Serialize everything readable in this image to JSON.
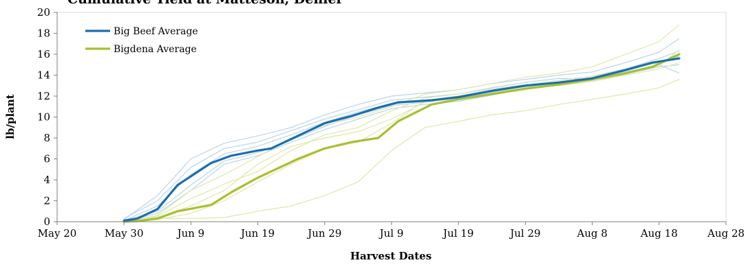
{
  "chart_data": {
    "type": "line",
    "title": "Cumulative Yield at Matteson, Denier",
    "xlabel": "Harvest Dates",
    "ylabel": "lb/plant",
    "xlim": [
      "2013-05-20",
      "2013-08-28"
    ],
    "ylim": [
      0,
      20
    ],
    "x_ticks": [
      "May 20",
      "May 30",
      "Jun 9",
      "Jun 19",
      "Jun 29",
      "Jul 9",
      "Jul 19",
      "Jul 29",
      "Aug 8",
      "Aug 18",
      "Aug 28"
    ],
    "y_ticks": [
      0,
      2,
      4,
      6,
      8,
      10,
      12,
      14,
      16,
      18,
      20
    ],
    "legend_position": "top-left",
    "grid": false,
    "colors": {
      "big_beef": "#1a6eb0",
      "bigdena": "#a5c12e",
      "big_beef_light": "#b8d4ea",
      "bigdena_light": "#dde8a8",
      "axis": "#7f7f7f"
    },
    "series": [
      {
        "name": "Big Beef Average",
        "x": [
          "2013-05-30",
          "2013-06-01",
          "2013-06-04",
          "2013-06-07",
          "2013-06-12",
          "2013-06-15",
          "2013-06-19",
          "2013-06-21",
          "2013-06-25",
          "2013-06-29",
          "2013-07-03",
          "2013-07-07",
          "2013-07-10",
          "2013-07-15",
          "2013-07-19",
          "2013-07-24",
          "2013-07-29",
          "2013-08-03",
          "2013-08-08",
          "2013-08-13",
          "2013-08-17",
          "2013-08-21"
        ],
        "values": [
          0.1,
          0.3,
          1.2,
          3.5,
          5.6,
          6.3,
          6.8,
          7.0,
          8.2,
          9.4,
          10.1,
          10.9,
          11.4,
          11.6,
          11.9,
          12.5,
          13.0,
          13.3,
          13.7,
          14.5,
          15.2,
          15.6
        ]
      },
      {
        "name": "Bigdena Average",
        "x": [
          "2013-05-30",
          "2013-06-01",
          "2013-06-04",
          "2013-06-07",
          "2013-06-12",
          "2013-06-15",
          "2013-06-19",
          "2013-06-21",
          "2013-06-25",
          "2013-06-29",
          "2013-07-03",
          "2013-07-07",
          "2013-07-10",
          "2013-07-15",
          "2013-07-19",
          "2013-07-24",
          "2013-07-29",
          "2013-08-03",
          "2013-08-08",
          "2013-08-13",
          "2013-08-17",
          "2013-08-21"
        ],
        "values": [
          0.0,
          0.05,
          0.3,
          1.0,
          1.6,
          2.8,
          4.2,
          4.8,
          6.0,
          7.0,
          7.6,
          8.0,
          9.6,
          11.2,
          11.7,
          12.2,
          12.7,
          13.1,
          13.6,
          14.2,
          14.8,
          16.0
        ]
      }
    ],
    "individual_series": [
      {
        "group": "Big Beef",
        "x": [
          "2013-05-30",
          "2013-06-04",
          "2013-06-09",
          "2013-06-14",
          "2013-06-19",
          "2013-06-24",
          "2013-06-29",
          "2013-07-04",
          "2013-07-09",
          "2013-07-14",
          "2013-07-19",
          "2013-07-24",
          "2013-07-29",
          "2013-08-03",
          "2013-08-08",
          "2013-08-13",
          "2013-08-18",
          "2013-08-21"
        ],
        "values": [
          0.2,
          2.5,
          6.0,
          7.5,
          8.2,
          9.0,
          10.2,
          11.2,
          12.0,
          12.3,
          12.6,
          13.2,
          13.6,
          14.0,
          14.3,
          15.2,
          16.2,
          17.5
        ]
      },
      {
        "group": "Big Beef",
        "x": [
          "2013-05-30",
          "2013-06-04",
          "2013-06-09",
          "2013-06-14",
          "2013-06-19",
          "2013-06-24",
          "2013-06-29",
          "2013-07-04",
          "2013-07-09",
          "2013-07-14",
          "2013-07-19",
          "2013-07-24",
          "2013-07-29",
          "2013-08-03",
          "2013-08-08",
          "2013-08-13",
          "2013-08-18",
          "2013-08-21"
        ],
        "values": [
          0.1,
          1.5,
          4.5,
          6.5,
          7.2,
          8.3,
          9.5,
          10.5,
          11.3,
          11.6,
          12.0,
          12.6,
          13.1,
          13.5,
          13.9,
          14.6,
          15.6,
          16.3
        ]
      },
      {
        "group": "Big Beef",
        "x": [
          "2013-05-30",
          "2013-06-04",
          "2013-06-09",
          "2013-06-14",
          "2013-06-19",
          "2013-06-24",
          "2013-06-29",
          "2013-07-04",
          "2013-07-09",
          "2013-07-14",
          "2013-07-19",
          "2013-07-24",
          "2013-07-29",
          "2013-08-03",
          "2013-08-08",
          "2013-08-13",
          "2013-08-18",
          "2013-08-21"
        ],
        "values": [
          0.0,
          0.8,
          3.0,
          5.5,
          6.3,
          7.6,
          8.8,
          9.8,
          10.8,
          11.2,
          11.5,
          12.1,
          12.7,
          13.1,
          13.4,
          14.1,
          14.8,
          15.0
        ]
      },
      {
        "group": "Big Beef",
        "x": [
          "2013-05-30",
          "2013-06-04",
          "2013-06-09",
          "2013-06-14",
          "2013-06-19",
          "2013-06-24",
          "2013-06-29",
          "2013-07-04",
          "2013-07-09",
          "2013-07-14",
          "2013-07-19",
          "2013-07-24",
          "2013-07-29",
          "2013-08-03",
          "2013-08-08",
          "2013-08-13",
          "2013-08-18",
          "2013-08-21"
        ],
        "values": [
          0.1,
          1.0,
          3.5,
          5.8,
          6.6,
          7.8,
          9.1,
          10.2,
          11.1,
          11.4,
          11.8,
          12.3,
          12.8,
          13.2,
          13.5,
          14.3,
          15.0,
          14.2
        ]
      },
      {
        "group": "Big Beef",
        "x": [
          "2013-05-30",
          "2013-06-04",
          "2013-06-09",
          "2013-06-14",
          "2013-06-19",
          "2013-06-24",
          "2013-06-29",
          "2013-07-04",
          "2013-07-09",
          "2013-07-14",
          "2013-07-19",
          "2013-07-24",
          "2013-07-29",
          "2013-08-03",
          "2013-08-08",
          "2013-08-13",
          "2013-08-18",
          "2013-08-21"
        ],
        "values": [
          0.3,
          2.0,
          5.2,
          7.0,
          7.6,
          8.7,
          9.8,
          10.7,
          11.6,
          11.9,
          12.2,
          12.8,
          13.3,
          13.7,
          13.6,
          14.4,
          15.3,
          15.8
        ]
      },
      {
        "group": "Bigdena",
        "x": [
          "2013-05-30",
          "2013-06-04",
          "2013-06-09",
          "2013-06-14",
          "2013-06-19",
          "2013-06-24",
          "2013-06-29",
          "2013-07-04",
          "2013-07-09",
          "2013-07-14",
          "2013-07-19",
          "2013-07-24",
          "2013-07-29",
          "2013-08-03",
          "2013-08-08",
          "2013-08-13",
          "2013-08-18",
          "2013-08-21"
        ],
        "values": [
          0.0,
          0.6,
          3.0,
          4.5,
          6.2,
          8.0,
          9.2,
          10.0,
          11.0,
          12.2,
          12.6,
          13.2,
          13.8,
          14.2,
          14.8,
          16.0,
          17.2,
          18.8
        ]
      },
      {
        "group": "Bigdena",
        "x": [
          "2013-05-30",
          "2013-06-04",
          "2013-06-09",
          "2013-06-14",
          "2013-06-19",
          "2013-06-24",
          "2013-06-29",
          "2013-07-04",
          "2013-07-09",
          "2013-07-14",
          "2013-07-19",
          "2013-07-24",
          "2013-07-29",
          "2013-08-03",
          "2013-08-08",
          "2013-08-13",
          "2013-08-18",
          "2013-08-21"
        ],
        "values": [
          0.0,
          0.3,
          0.3,
          0.4,
          1.0,
          1.5,
          2.5,
          3.8,
          6.8,
          9.0,
          9.6,
          10.2,
          10.6,
          11.2,
          11.7,
          12.2,
          12.8,
          13.6
        ]
      },
      {
        "group": "Bigdena",
        "x": [
          "2013-05-30",
          "2013-06-04",
          "2013-06-09",
          "2013-06-14",
          "2013-06-19",
          "2013-06-24",
          "2013-06-29",
          "2013-07-04",
          "2013-07-09",
          "2013-07-14",
          "2013-07-19",
          "2013-07-24",
          "2013-07-29",
          "2013-08-03",
          "2013-08-08",
          "2013-08-13",
          "2013-08-18",
          "2013-08-21"
        ],
        "values": [
          0.0,
          0.4,
          1.5,
          3.0,
          5.5,
          7.2,
          8.0,
          8.6,
          9.8,
          11.4,
          11.9,
          12.5,
          12.9,
          13.2,
          13.6,
          14.2,
          14.9,
          16.4
        ]
      },
      {
        "group": "Bigdena",
        "x": [
          "2013-05-30",
          "2013-06-04",
          "2013-06-09",
          "2013-06-14",
          "2013-06-19",
          "2013-06-24",
          "2013-06-29",
          "2013-07-04",
          "2013-07-09",
          "2013-07-14",
          "2013-07-19",
          "2013-07-24",
          "2013-07-29",
          "2013-08-03",
          "2013-08-08",
          "2013-08-13",
          "2013-08-18",
          "2013-08-21"
        ],
        "values": [
          0.0,
          0.2,
          0.8,
          2.0,
          3.8,
          5.5,
          7.0,
          7.6,
          9.4,
          11.6,
          12.0,
          12.4,
          12.8,
          13.0,
          13.4,
          14.0,
          14.6,
          15.2
        ]
      },
      {
        "group": "Bigdena",
        "x": [
          "2013-05-30",
          "2013-06-04",
          "2013-06-09",
          "2013-06-14",
          "2013-06-19",
          "2013-06-24",
          "2013-06-29",
          "2013-07-04",
          "2013-07-09",
          "2013-07-14",
          "2013-07-19",
          "2013-07-24",
          "2013-07-29",
          "2013-08-03",
          "2013-08-08",
          "2013-08-13",
          "2013-08-18",
          "2013-08-21"
        ],
        "values": [
          0.0,
          0.5,
          2.2,
          3.6,
          4.8,
          6.8,
          8.3,
          9.0,
          10.6,
          11.8,
          12.2,
          12.7,
          13.1,
          13.5,
          13.9,
          14.5,
          15.2,
          16.0
        ]
      }
    ]
  }
}
